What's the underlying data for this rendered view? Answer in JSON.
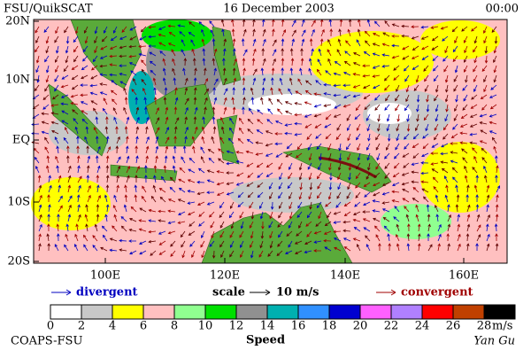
{
  "header": {
    "title": "FSU/QuikSCAT",
    "date": "16 December 2003",
    "time": "00:00"
  },
  "map": {
    "lat_labels": [
      "20N",
      "10N",
      "EQ",
      "10S",
      "20S"
    ],
    "lon_labels": [
      "100E",
      "120E",
      "140E",
      "160E"
    ]
  },
  "legend": {
    "divergent": "divergent",
    "scale": "scale",
    "scale_value": "10 m/s",
    "convergent": "convergent"
  },
  "colorbar": {
    "labels": [
      "0",
      "2",
      "4",
      "6",
      "8",
      "10",
      "12",
      "14",
      "16",
      "18",
      "20",
      "22",
      "24",
      "26",
      "28"
    ],
    "unit": "m/s",
    "title": "Speed",
    "colors": [
      "#ffffff",
      "#c8c8c8",
      "#ffff00",
      "#ffc0c0",
      "#90ff90",
      "#00e000",
      "#909090",
      "#00b0b0",
      "#3090ff",
      "#0000d0",
      "#ff60ff",
      "#b080ff",
      "#ff0000",
      "#c04000",
      "#000000"
    ]
  },
  "footer": {
    "left": "COAPS-FSU",
    "right": "Yan Gu"
  }
}
